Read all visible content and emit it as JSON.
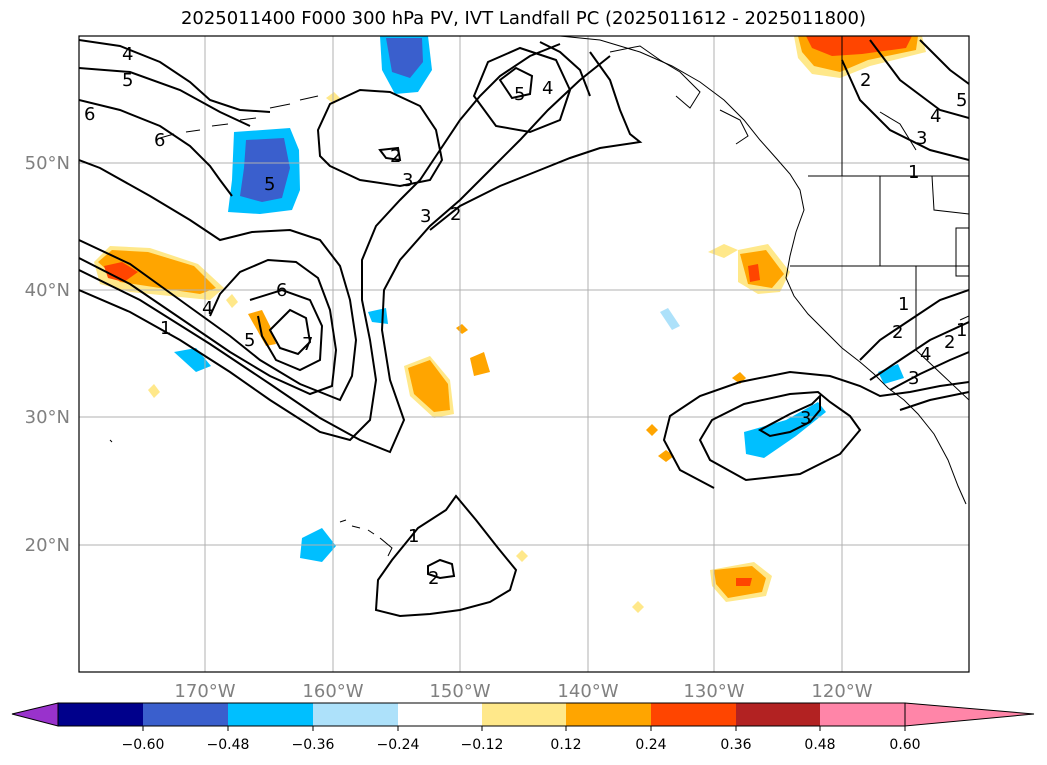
{
  "title": "2025011400 F000 300 hPa PV, IVT Landfall PC (2025011612 - 2025011800)",
  "lat_labels": [
    "50°N",
    "40°N",
    "30°N",
    "20°N"
  ],
  "lon_labels": [
    "170°W",
    "160°W",
    "150°W",
    "140°W",
    "130°W",
    "120°W"
  ],
  "colorbar": {
    "ticks": [
      "−0.60",
      "−0.48",
      "−0.36",
      "−0.24",
      "−0.12",
      "0.12",
      "0.24",
      "0.36",
      "0.48",
      "0.60"
    ],
    "colors": [
      "#9932CC",
      "#00008B",
      "#3A5FCD",
      "#00BFFF",
      "#ADE1FA",
      "#FFFFFF",
      "#FFE88A",
      "#FFA500",
      "#FF4500",
      "#B22222",
      "#FF85A8"
    ]
  },
  "contour_labels": [
    "4",
    "5",
    "6",
    "6",
    "5",
    "2",
    "3",
    "5",
    "4",
    "3",
    "2",
    "1",
    "6",
    "5",
    "7",
    "4",
    "1",
    "2",
    "5",
    "4",
    "3",
    "2",
    "1",
    "1",
    "2",
    "4",
    "3",
    "3",
    "1",
    "2"
  ]
}
